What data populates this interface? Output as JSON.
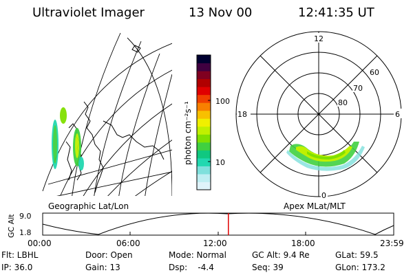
{
  "header": {
    "title": "Ultraviolet Imager",
    "date": "13 Nov 00",
    "time": "12:41:35 UT"
  },
  "geo_panel": {
    "label": "Geographic Lat/Lon"
  },
  "colorbar": {
    "label": "photon cm⁻²s⁻¹",
    "ticks": [
      "100",
      "10"
    ],
    "colors": [
      "#dff3fa",
      "#bfeef2",
      "#7fe0dc",
      "#22d8b0",
      "#10c880",
      "#40d040",
      "#80e000",
      "#c0f000",
      "#f0f000",
      "#f8c000",
      "#f88000",
      "#f04000",
      "#e00000",
      "#b00000",
      "#800020",
      "#400040",
      "#000030"
    ]
  },
  "polar_panel": {
    "label": "Apex MLat/MLT",
    "mlt_labels": {
      "top": "12",
      "left": "18",
      "right": "6",
      "bottom": "0"
    },
    "lat_labels": [
      "60",
      "70",
      "80"
    ]
  },
  "timeline": {
    "ylabel": "GC Alt",
    "yticks": [
      "9.0",
      "1.8"
    ],
    "xticks": [
      "00:00",
      "06:00",
      "12:00",
      "18:00",
      "23:59"
    ],
    "current_fraction": 0.529,
    "marker_color": "#e00000"
  },
  "info": {
    "row1": {
      "filter": "Flt: LBHL",
      "door": "Door: Open",
      "mode": "Mode: Normal",
      "gc_alt": "GC Alt: 9.4 Re",
      "glat": "GLat:  59.5"
    },
    "row2": {
      "ip": "IP: 36.0",
      "gain": "Gain: 13",
      "dsp": "Dsp:    -4.4",
      "seq": "Seq: 39",
      "glon": "GLon: 173.2"
    }
  }
}
